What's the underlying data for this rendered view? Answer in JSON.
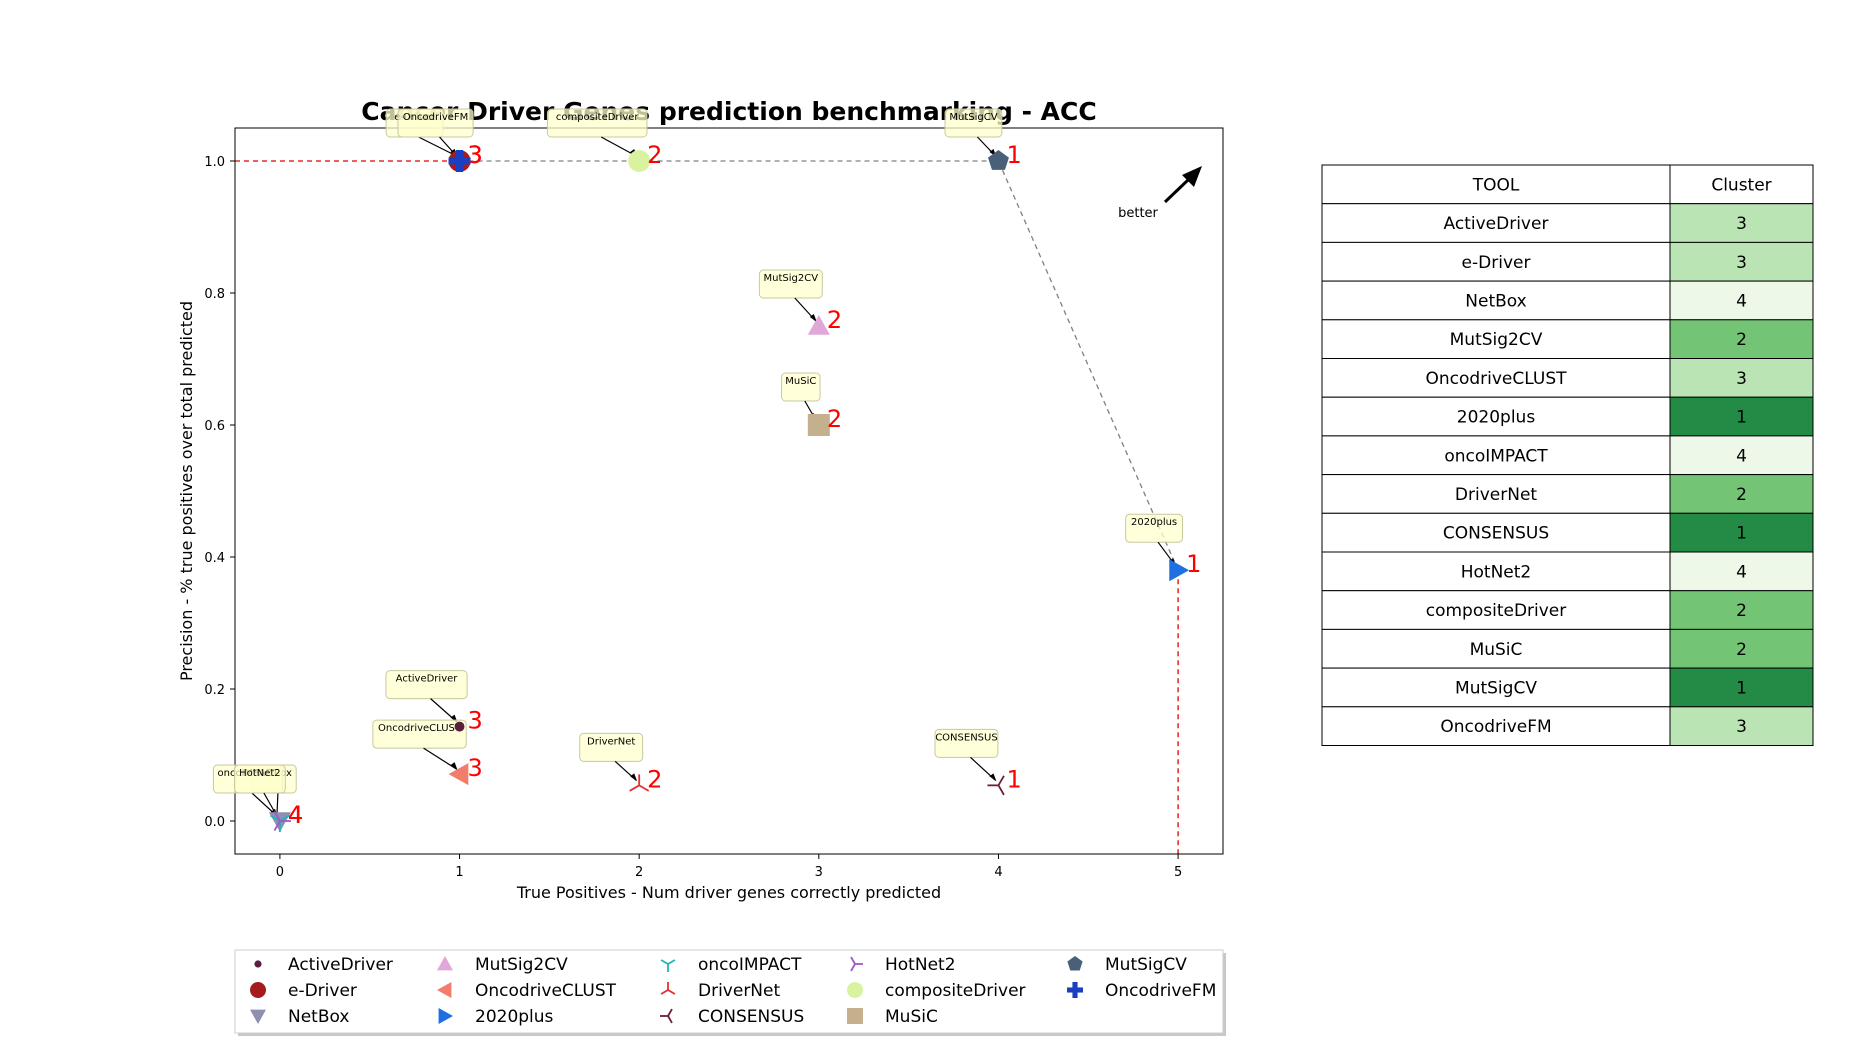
{
  "chart_data": [
    {
      "type": "scatter",
      "title": "Cancer Driver Genes prediction benchmarking - ACC",
      "xlabel": "True Positives - Num driver genes correctly predicted",
      "ylabel": "Precision - % true positives over total predicted",
      "xlim": [
        -0.25,
        5.25
      ],
      "ylim": [
        -0.05,
        1.05
      ],
      "xticks": [
        "0",
        "1",
        "2",
        "3",
        "4",
        "5"
      ],
      "yticks": [
        "0.0",
        "0.2",
        "0.4",
        "0.6",
        "0.8",
        "1.0"
      ],
      "grid": false,
      "legend_position": "bottom",
      "better_label": "better",
      "pareto_front": [
        [
          1,
          1.0
        ],
        [
          4,
          1.0
        ],
        [
          5,
          0.38
        ]
      ],
      "points": [
        {
          "name": "ActiveDriver",
          "x": 1,
          "y": 0.143,
          "cluster": "3",
          "marker": "dot",
          "color": "#5a1f3c"
        },
        {
          "name": "e-Driver",
          "x": 1,
          "y": 1.0,
          "cluster": "3",
          "marker": "circle",
          "color": "#a61c1c"
        },
        {
          "name": "NetBox",
          "x": 0,
          "y": 0.0,
          "cluster": "4",
          "marker": "triangle-down",
          "color": "#8f8fb0"
        },
        {
          "name": "MutSig2CV",
          "x": 3,
          "y": 0.75,
          "cluster": "2",
          "marker": "triangle-up",
          "color": "#e0a8d8"
        },
        {
          "name": "OncodriveCLUST",
          "x": 1,
          "y": 0.071,
          "cluster": "3",
          "marker": "triangle-left",
          "color": "#f27d6b"
        },
        {
          "name": "2020plus",
          "x": 5,
          "y": 0.38,
          "cluster": "1",
          "marker": "triangle-right",
          "color": "#1f6fe0"
        },
        {
          "name": "oncoIMPACT",
          "x": 0,
          "y": 0.0,
          "cluster": "4",
          "marker": "tri-down",
          "color": "#1fb5b5"
        },
        {
          "name": "DriverNet",
          "x": 2,
          "y": 0.054,
          "cluster": "2",
          "marker": "tri-up",
          "color": "#e03030"
        },
        {
          "name": "CONSENSUS",
          "x": 4,
          "y": 0.054,
          "cluster": "1",
          "marker": "tri-left",
          "color": "#6b1f3c"
        },
        {
          "name": "HotNet2",
          "x": 0,
          "y": 0.0,
          "cluster": "4",
          "marker": "tri-right",
          "color": "#9b59c9"
        },
        {
          "name": "compositeDriver",
          "x": 2,
          "y": 1.0,
          "cluster": "2",
          "marker": "circle",
          "color": "#d9f2a0"
        },
        {
          "name": "MuSiC",
          "x": 3,
          "y": 0.6,
          "cluster": "2",
          "marker": "square",
          "color": "#c4b08c"
        },
        {
          "name": "MutSigCV",
          "x": 4,
          "y": 1.0,
          "cluster": "1",
          "marker": "pentagon",
          "color": "#4a6078"
        },
        {
          "name": "OncodriveFM",
          "x": 1,
          "y": 1.0,
          "cluster": "3",
          "marker": "plus",
          "color": "#1a3fc2"
        }
      ]
    },
    {
      "type": "table",
      "columns": [
        "TOOL",
        "Cluster"
      ],
      "rows": [
        [
          "ActiveDriver",
          "3"
        ],
        [
          "e-Driver",
          "3"
        ],
        [
          "NetBox",
          "4"
        ],
        [
          "MutSig2CV",
          "2"
        ],
        [
          "OncodriveCLUST",
          "3"
        ],
        [
          "2020plus",
          "1"
        ],
        [
          "oncoIMPACT",
          "4"
        ],
        [
          "DriverNet",
          "2"
        ],
        [
          "CONSENSUS",
          "1"
        ],
        [
          "HotNet2",
          "4"
        ],
        [
          "compositeDriver",
          "2"
        ],
        [
          "MuSiC",
          "2"
        ],
        [
          "MutSigCV",
          "1"
        ],
        [
          "OncodriveFM",
          "3"
        ]
      ],
      "cluster_colors": {
        "1": "#238b45",
        "2": "#74c476",
        "3": "#bae4b3",
        "4": "#edf8e9"
      }
    }
  ]
}
